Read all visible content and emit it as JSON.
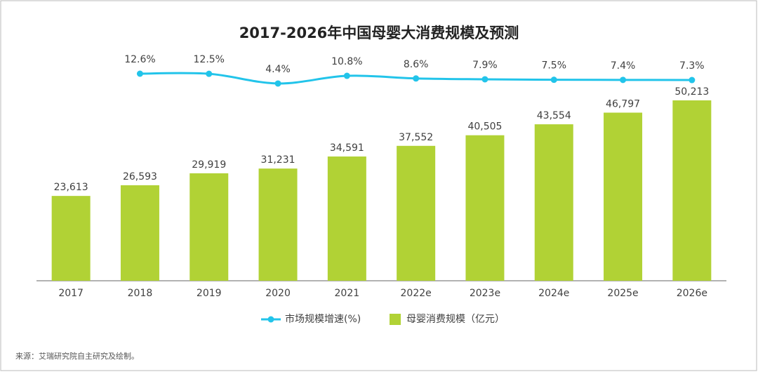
{
  "chart_data": {
    "type": "bar-line",
    "title": "2017-2026年中国母婴大消费规模及预测",
    "categories": [
      "2017",
      "2018",
      "2019",
      "2020",
      "2021",
      "2022e",
      "2023e",
      "2024e",
      "2025e",
      "2026e"
    ],
    "series": [
      {
        "name": "市场规模增速(%)",
        "type": "line",
        "color": "#22c4ea",
        "values": [
          null,
          12.6,
          12.5,
          4.4,
          10.8,
          8.6,
          7.9,
          7.5,
          7.4,
          7.3
        ],
        "value_labels": [
          null,
          "12.6%",
          "12.5%",
          "4.4%",
          "10.8%",
          "8.6%",
          "7.9%",
          "7.5%",
          "7.4%",
          "7.3%"
        ]
      },
      {
        "name": "母婴消费规模（亿元）",
        "type": "bar",
        "color": "#b1d235",
        "values": [
          23613,
          26593,
          29919,
          31231,
          34591,
          37552,
          40505,
          43554,
          46797,
          50213
        ],
        "value_labels": [
          "23,613",
          "26,593",
          "29,919",
          "31,231",
          "34,591",
          "37,552",
          "40,505",
          "43,554",
          "46,797",
          "50,213"
        ]
      }
    ],
    "source": "来源：艾瑞研究院自主研究及绘制。"
  }
}
